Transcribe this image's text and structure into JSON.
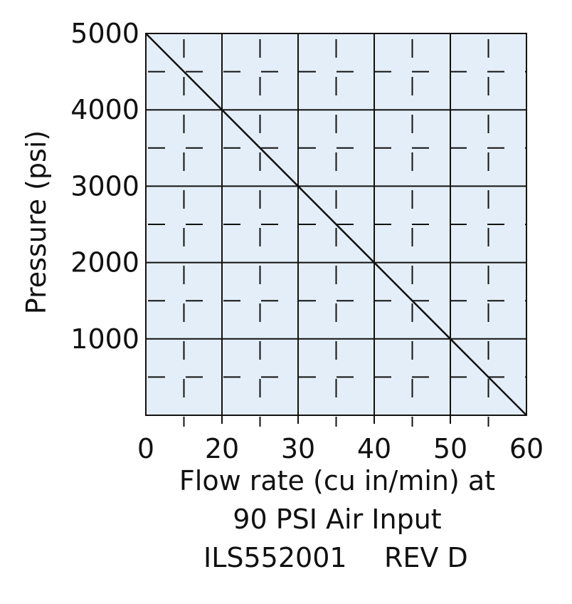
{
  "chart_data": {
    "type": "line",
    "title": "",
    "xlabel": "Flow rate (cu in/min) at",
    "xlabel_line2": "90 PSI Air Input",
    "ylabel": "Pressure (psi)",
    "document_id": "ILS552001",
    "revision": "REV D",
    "x_ticks": [
      "0",
      "20",
      "30",
      "40",
      "50",
      "60"
    ],
    "y_ticks": [
      "1000",
      "2000",
      "3000",
      "4000",
      "5000"
    ],
    "xlim": [
      0,
      60
    ],
    "ylim": [
      0,
      5000
    ],
    "grid": true,
    "series": [
      {
        "x": [
          0,
          60
        ],
        "y": [
          5000,
          0
        ]
      }
    ],
    "colors": {
      "plot_background": "#e3eef8",
      "grid": "#111111",
      "line": "#111111",
      "text": "#111111"
    }
  }
}
